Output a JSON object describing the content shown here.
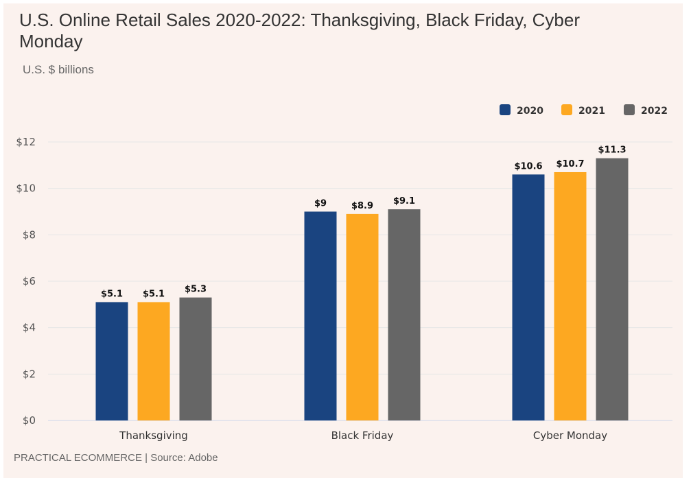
{
  "chart_data": {
    "type": "bar",
    "title": "U.S. Online Retail Sales 2020-2022: Thanksgiving, Black Friday, Cyber Monday",
    "subtitle": "U.S. $ billions",
    "categories": [
      "Thanksgiving",
      "Black Friday",
      "Cyber Monday"
    ],
    "series": [
      {
        "name": "2020",
        "color": "#1a4480",
        "values": [
          5.1,
          9,
          10.6
        ],
        "labels": [
          "$5.1",
          "$9",
          "$10.6"
        ]
      },
      {
        "name": "2021",
        "color": "#fda821",
        "values": [
          5.1,
          8.9,
          10.7
        ],
        "labels": [
          "$5.1",
          "$8.9",
          "$10.7"
        ]
      },
      {
        "name": "2022",
        "color": "#666666",
        "values": [
          5.3,
          9.1,
          11.3
        ],
        "labels": [
          "$5.3",
          "$9.1",
          "$11.3"
        ]
      }
    ],
    "ylim": [
      0,
      12
    ],
    "yticks": [
      0,
      2,
      4,
      6,
      8,
      10,
      12
    ],
    "ytick_labels": [
      "$0",
      "$2",
      "$4",
      "$6",
      "$8",
      "$10",
      "$12"
    ],
    "grid": true,
    "legend": "top-right",
    "xlabel": "",
    "ylabel": ""
  },
  "footer": "PRACTICAL ECOMMERCE | Source: Adobe"
}
